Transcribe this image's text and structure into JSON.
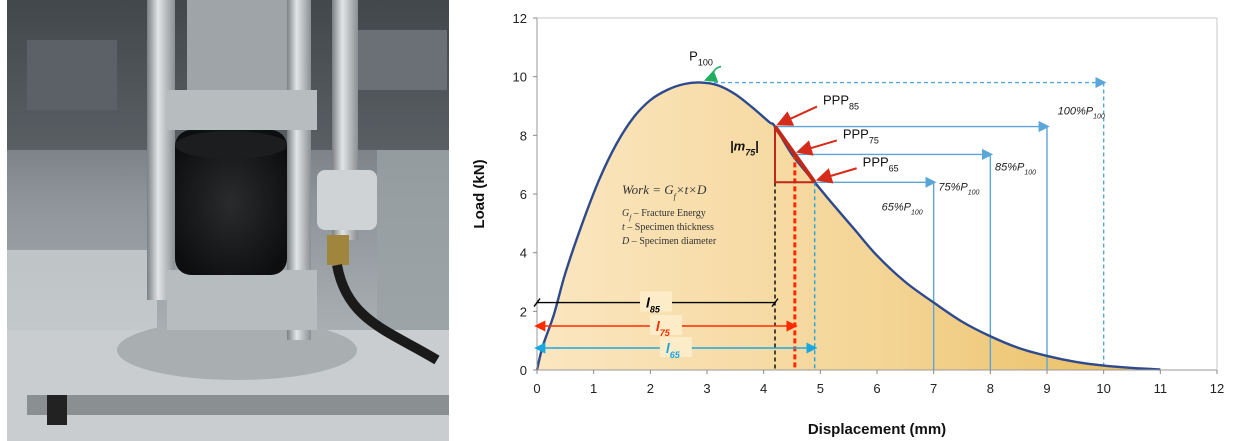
{
  "chart_data": {
    "type": "area",
    "xlabel": "Displacement (mm)",
    "ylabel": "Load (kN)",
    "xlim": [
      0,
      12
    ],
    "ylim": [
      0,
      12
    ],
    "xticks": [
      "0",
      "1",
      "2",
      "3",
      "4",
      "5",
      "6",
      "7",
      "8",
      "9",
      "10",
      "11",
      "12"
    ],
    "yticks": [
      "0",
      "2",
      "4",
      "6",
      "8",
      "10",
      "12"
    ],
    "grid": false,
    "series": [
      {
        "x": [
          0,
          0.1,
          0.3,
          0.5,
          0.8,
          1.1,
          1.4,
          1.7,
          2.0,
          2.3,
          2.6,
          2.9,
          3.2,
          3.5,
          3.8,
          4.1,
          4.2,
          4.5,
          4.9,
          5.2,
          5.6,
          6.0,
          6.5,
          7.0,
          7.5,
          8.0,
          8.5,
          9.0,
          9.5,
          10.0,
          10.5,
          11.0
        ],
        "y": [
          0,
          0.8,
          1.9,
          3.3,
          5.0,
          6.5,
          7.7,
          8.6,
          9.2,
          9.55,
          9.75,
          9.8,
          9.7,
          9.4,
          8.95,
          8.45,
          8.3,
          7.35,
          6.4,
          5.7,
          4.8,
          3.9,
          3.0,
          2.3,
          1.65,
          1.15,
          0.75,
          0.48,
          0.28,
          0.15,
          0.07,
          0.02
        ]
      }
    ],
    "peak": {
      "label": "P",
      "sub": "100",
      "x": 3.0,
      "y": 9.8
    },
    "ppp_points": [
      {
        "label": "PPP",
        "sub": "85",
        "x": 4.2,
        "y": 8.3
      },
      {
        "label": "PPP",
        "sub": "75",
        "x": 4.55,
        "y": 7.35
      },
      {
        "label": "PPP",
        "sub": "65",
        "x": 4.9,
        "y": 6.4
      }
    ],
    "level_lines": [
      {
        "label": "100%P",
        "sub": "100",
        "x": 10,
        "y": 9.8
      },
      {
        "label": "85%P",
        "sub": "100",
        "x": 9,
        "y": 8.3
      },
      {
        "label": "75%P",
        "sub": "100",
        "x": 8,
        "y": 7.35
      },
      {
        "label": "65%P",
        "sub": "100",
        "x": 7,
        "y": 6.4
      }
    ],
    "displacement_markers": [
      {
        "label": "l",
        "sub": "85",
        "x": 4.2,
        "y": 2.3,
        "color": "#000000"
      },
      {
        "label": "l",
        "sub": "75",
        "x": 4.55,
        "y": 1.5,
        "color": "#ff2a00"
      },
      {
        "label": "l",
        "sub": "65",
        "x": 4.9,
        "y": 0.75,
        "color": "#1aa7e0"
      }
    ],
    "slope_label": {
      "prefix": "|m",
      "sub": "75",
      "suffix": "|"
    },
    "formula": {
      "title": "Work = G",
      "title_sub": "f",
      "title_rest": "×t×D",
      "lines": [
        {
          "sym": "G",
          "sub": "f",
          "text": " – Fracture Energy"
        },
        {
          "sym": "t",
          "sub": "",
          "text": " – Specimen thickness"
        },
        {
          "sym": "D",
          "sub": "",
          "text": " – Specimen diameter"
        }
      ]
    },
    "colors": {
      "curve": "#2e4a8c",
      "fill_light": "#fbe6c0",
      "fill_dark": "#e9bd5e",
      "level_line": "#5aa6d8",
      "peak_arrow": "#1fae5f",
      "ppp_arrow": "#d62a1a",
      "triangle": "#c0281a"
    }
  }
}
